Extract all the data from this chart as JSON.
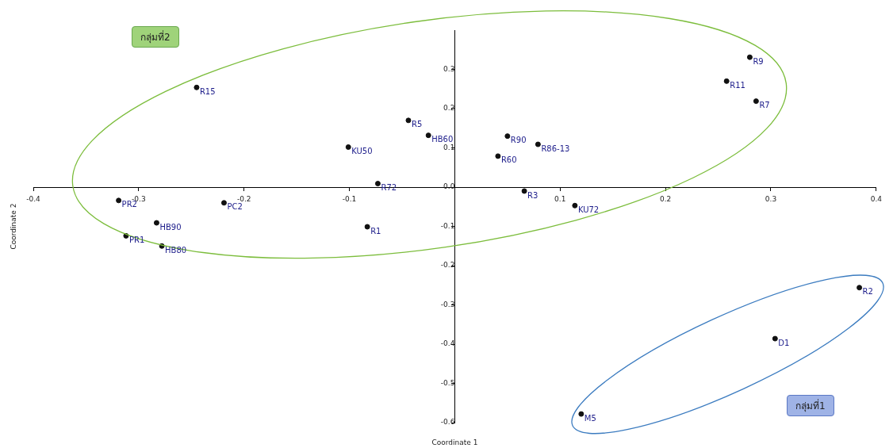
{
  "chart_data": {
    "type": "scatter",
    "xlabel": "Coordinate 1",
    "ylabel": "Coordinate 2",
    "color": "#111111",
    "marker": "circle",
    "grid": false,
    "legend": false,
    "x": [
      -0.245,
      -0.044,
      -0.025,
      -0.101,
      -0.073,
      -0.319,
      -0.219,
      -0.283,
      -0.312,
      -0.278,
      -0.083,
      0.28,
      0.258,
      0.286,
      0.05,
      0.079,
      0.041,
      0.066,
      0.114,
      0.384,
      0.304,
      0.12
    ],
    "values": [
      0.254,
      0.17,
      0.132,
      0.102,
      0.009,
      -0.034,
      -0.04,
      -0.091,
      -0.124,
      -0.15,
      -0.101,
      0.331,
      0.27,
      0.219,
      0.13,
      0.109,
      0.079,
      -0.01,
      -0.047,
      -0.256,
      -0.386,
      -0.578
    ],
    "xlim": [
      -0.4,
      0.4
    ],
    "xticks": [
      -0.4,
      -0.3,
      -0.2,
      -0.1,
      0.1,
      0.2,
      0.3,
      0.4
    ],
    "ylim": [
      -0.6,
      0.4
    ],
    "yticks": [
      -0.6,
      -0.5,
      -0.4,
      -0.3,
      -0.2,
      -0.1,
      {
        "value": 0,
        "label": "0.0"
      },
      0.1,
      0.2,
      0.3
    ],
    "annotations": [
      "กลุ่มที่2",
      "กลุ่มที่1",
      {
        "text": "R15",
        "x": -0.245,
        "y": 0.254
      },
      {
        "text": "R5",
        "x": -0.044,
        "y": 0.17
      },
      {
        "text": "HB60",
        "x": -0.025,
        "y": 0.132
      },
      {
        "text": "KU50",
        "x": -0.101,
        "y": 0.102
      },
      {
        "text": "R72",
        "x": -0.073,
        "y": 0.009
      },
      {
        "text": "PR2",
        "x": -0.319,
        "y": -0.034
      },
      {
        "text": "PC2",
        "x": -0.219,
        "y": -0.04
      },
      {
        "text": "HB90",
        "x": -0.283,
        "y": -0.091
      },
      {
        "text": "PR1",
        "x": -0.312,
        "y": -0.124
      },
      {
        "text": "HB80",
        "x": -0.278,
        "y": -0.15
      },
      {
        "text": "R1",
        "x": -0.083,
        "y": -0.101
      },
      {
        "text": "R9",
        "x": 0.28,
        "y": 0.331
      },
      {
        "text": "R11",
        "x": 0.258,
        "y": 0.27
      },
      {
        "text": "R7",
        "x": 0.286,
        "y": 0.219
      },
      {
        "text": "R90",
        "x": 0.05,
        "y": 0.13
      },
      {
        "text": "R86-13",
        "x": 0.079,
        "y": 0.109
      },
      {
        "text": "R60",
        "x": 0.041,
        "y": 0.079
      },
      {
        "text": "R3",
        "x": 0.066,
        "y": -0.01
      },
      {
        "text": "KU72",
        "x": 0.114,
        "y": -0.047
      },
      {
        "text": "R2",
        "x": 0.384,
        "y": -0.256
      },
      {
        "text": "D1",
        "x": 0.304,
        "y": -0.386
      },
      {
        "text": "M5",
        "x": 0.12,
        "y": -0.578
      }
    ]
  }
}
